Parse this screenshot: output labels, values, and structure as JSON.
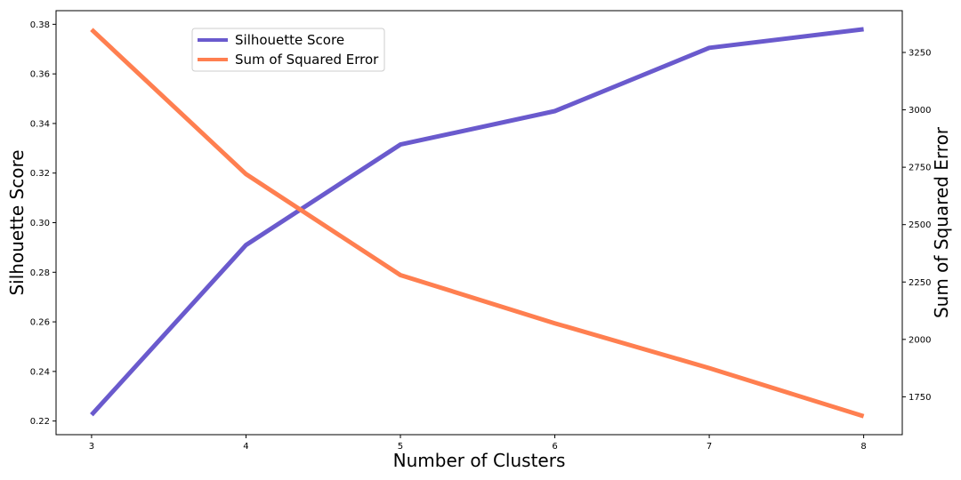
{
  "chart_data": {
    "type": "line",
    "x": [
      3,
      4,
      5,
      6,
      7,
      8
    ],
    "xlabel": "Number of Clusters",
    "ylabel_left": "Silhouette Score",
    "ylabel_right": "Sum of Squared Error",
    "xlim": [
      2.77,
      8.25
    ],
    "ylim_left": [
      0.2145,
      0.3855
    ],
    "ylim_right": [
      1585,
      3432
    ],
    "x_ticks": [
      "3",
      "4",
      "5",
      "6",
      "7",
      "8"
    ],
    "y_left_ticks": [
      "0.22",
      "0.24",
      "0.26",
      "0.28",
      "0.30",
      "0.32",
      "0.34",
      "0.36",
      "0.38"
    ],
    "y_right_ticks": [
      "1750",
      "2000",
      "2250",
      "2500",
      "2750",
      "3000",
      "3250"
    ],
    "grid": false,
    "legend_position": "upper-left",
    "series": [
      {
        "name": "Silhouette Score",
        "axis": "left",
        "color": "#6a5acd",
        "values": [
          0.2225,
          0.291,
          0.3315,
          0.345,
          0.3705,
          0.378
        ]
      },
      {
        "name": "Sum of Squared Error",
        "axis": "right",
        "color": "#ff7f50",
        "values": [
          3350,
          2720,
          2280,
          2070,
          1875,
          1665
        ]
      }
    ]
  }
}
